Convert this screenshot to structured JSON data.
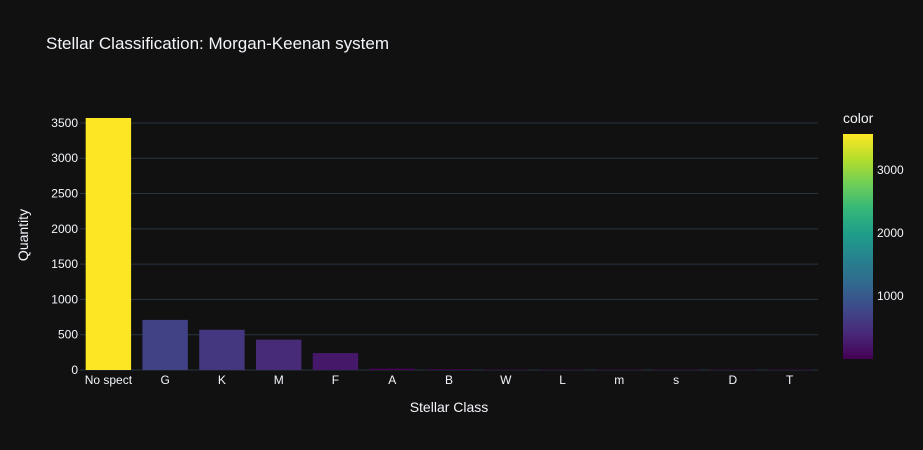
{
  "chart_data": {
    "type": "bar",
    "title": "Stellar Classification: Morgan-Keenan system",
    "xlabel": "Stellar Class",
    "ylabel": "Quantity",
    "categories": [
      "No spect",
      "G",
      "K",
      "M",
      "F",
      "A",
      "B",
      "W",
      "L",
      "m",
      "s",
      "D",
      "T"
    ],
    "values": [
      3570,
      710,
      570,
      430,
      240,
      20,
      10,
      6,
      5,
      4,
      3,
      3,
      2
    ],
    "ylim": [
      0,
      3570
    ],
    "yticks": [
      0,
      500,
      1000,
      1500,
      2000,
      2500,
      3000,
      3500
    ],
    "grid": true,
    "colorbar": {
      "title": "color",
      "range": [
        2,
        3570
      ],
      "ticks": [
        1000,
        2000,
        3000
      ],
      "colorscale": "Viridis"
    }
  },
  "colors": {
    "background": "#111111",
    "grid": "#283442",
    "text": "#f2f5fa",
    "viridis": [
      "#440154",
      "#482878",
      "#3e4989",
      "#31688e",
      "#26828e",
      "#1f9e89",
      "#35b779",
      "#6ece58",
      "#b5de2b",
      "#fde725"
    ]
  }
}
